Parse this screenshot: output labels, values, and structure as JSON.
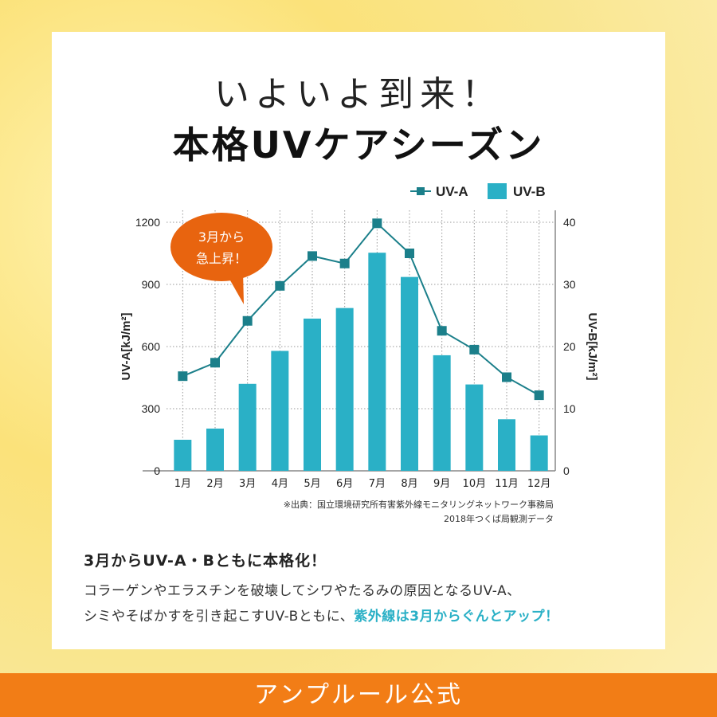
{
  "header": {
    "line1": "いよいよ到来！",
    "line2": "本格UVケアシーズン"
  },
  "chart_data": {
    "type": "bar+line",
    "categories": [
      "1月",
      "2月",
      "3月",
      "4月",
      "5月",
      "6月",
      "7月",
      "8月",
      "9月",
      "10月",
      "11月",
      "12月"
    ],
    "series": [
      {
        "name": "UV-A",
        "type": "line",
        "axis": "left",
        "values": [
          457,
          522,
          724,
          893,
          1037,
          1001,
          1195,
          1050,
          676,
          585,
          452,
          365
        ],
        "color": "#1b7f8a"
      },
      {
        "name": "UV-B",
        "type": "bar",
        "axis": "right",
        "values": [
          5.0,
          6.8,
          14.0,
          19.3,
          24.5,
          26.2,
          35.1,
          31.2,
          18.6,
          13.9,
          8.3,
          5.7
        ],
        "color": "#2ab0c6"
      }
    ],
    "ylabel": "UV-A[kJ/m²]",
    "y2label": "UV-B[kJ/m²]",
    "ylim": [
      0,
      1200
    ],
    "y2lim": [
      0,
      40
    ],
    "yticks": [
      "0",
      "300",
      "600",
      "900",
      "1200"
    ],
    "y2ticks": [
      "0",
      "10",
      "20",
      "30",
      "40"
    ],
    "grid": true,
    "legend": "top-right",
    "callout": {
      "line1": "3月から",
      "line2": "急上昇！",
      "color": "#e8640f"
    },
    "source": {
      "line1": "※出典：国立環境研究所有害紫外線モニタリングネットワーク事務局",
      "line2": "2018年つくば局観測データ"
    }
  },
  "body": {
    "subtitle": "3月からUV-A・Bともに本格化！",
    "line1": "コラーゲンやエラスチンを破壊してシワやたるみの原因となるUV-A、",
    "line2": "シミやそばかすを引き起こすUV-Bともに、",
    "line2_highlight": "紫外線は3月からぐんとアップ！"
  },
  "footer": {
    "label": "アンプルール公式"
  }
}
